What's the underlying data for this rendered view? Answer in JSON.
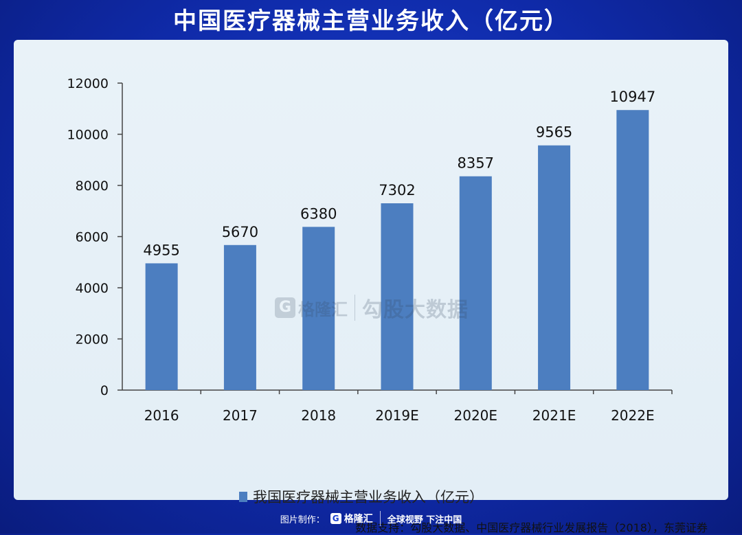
{
  "page": {
    "title": "中国医疗器械主营业务收入（亿元）",
    "source": "数据支持：勾股大数据、中国医疗器械行业发展报告（2018），东莞证券",
    "watermark": {
      "logo_letter": "G",
      "brand": "格隆汇",
      "text": "勾股大数据"
    },
    "footer": {
      "made_by": "图片制作：",
      "logo_letter": "G",
      "brand": "格隆汇",
      "slogan": "全球视野 下注中国"
    }
  },
  "colors": {
    "bar": "#4c7ec0",
    "background": "#1a3fd0",
    "card": "#e6f0f7"
  },
  "chart_data": {
    "type": "bar",
    "categories": [
      "2016",
      "2017",
      "2018",
      "2019E",
      "2020E",
      "2021E",
      "2022E"
    ],
    "series": [
      {
        "name": "我国医疗器械主营业务收入（亿元）",
        "values": [
          4955,
          5670,
          6380,
          7302,
          8357,
          9565,
          10947
        ]
      }
    ],
    "ylim": [
      0,
      12000
    ],
    "yticks": [
      0,
      2000,
      4000,
      6000,
      8000,
      10000,
      12000
    ],
    "data_labels": true,
    "grid": false,
    "legend_position": "bottom-left"
  }
}
